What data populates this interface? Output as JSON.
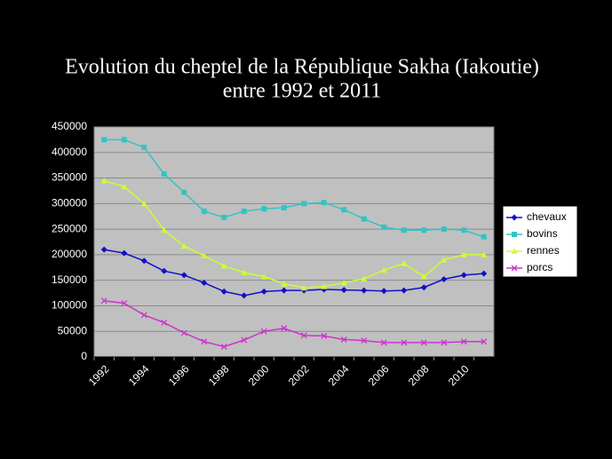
{
  "chart_data": {
    "type": "line",
    "title": [
      "Evolution du cheptel de la République Sakha (Iakoutie)",
      "entre 1992 et 2011"
    ],
    "categories": [
      "1992",
      null,
      "1994",
      null,
      "1996",
      null,
      "1998",
      null,
      "2000",
      null,
      "2002",
      null,
      "2004",
      null,
      "2006",
      null,
      "2008",
      null,
      "2010",
      null
    ],
    "series": [
      {
        "name": "chevaux",
        "color": "#1010c8",
        "marker": "diamond",
        "values": [
          210000,
          203000,
          188000,
          168000,
          160000,
          145000,
          128000,
          120000,
          128000,
          130000,
          130000,
          132000,
          131000,
          130000,
          129000,
          130000,
          136000,
          152000,
          160000,
          163000
        ]
      },
      {
        "name": "bovins",
        "color": "#33c4c4",
        "marker": "square",
        "values": [
          425000,
          425000,
          410000,
          358000,
          322000,
          285000,
          273000,
          285000,
          290000,
          292000,
          300000,
          302000,
          288000,
          270000,
          254000,
          248000,
          248000,
          250000,
          248000,
          235000
        ]
      },
      {
        "name": "rennes",
        "color": "#ccff33",
        "marker": "triangle",
        "values": [
          345000,
          333000,
          300000,
          248000,
          217000,
          198000,
          178000,
          165000,
          157000,
          143000,
          135000,
          138000,
          145000,
          153000,
          170000,
          183000,
          157000,
          190000,
          200000,
          200000
        ]
      },
      {
        "name": "porcs",
        "color": "#cc33cc",
        "marker": "x",
        "values": [
          110000,
          105000,
          82000,
          67000,
          47000,
          30000,
          20000,
          33000,
          50000,
          56000,
          42000,
          41000,
          34000,
          32000,
          28000,
          28000,
          28000,
          28000,
          30000,
          30000
        ]
      }
    ],
    "ylim": [
      0,
      450000
    ],
    "yticks": [
      0,
      50000,
      100000,
      150000,
      200000,
      250000,
      300000,
      350000,
      400000,
      450000
    ],
    "grid": true,
    "legend": "right"
  }
}
